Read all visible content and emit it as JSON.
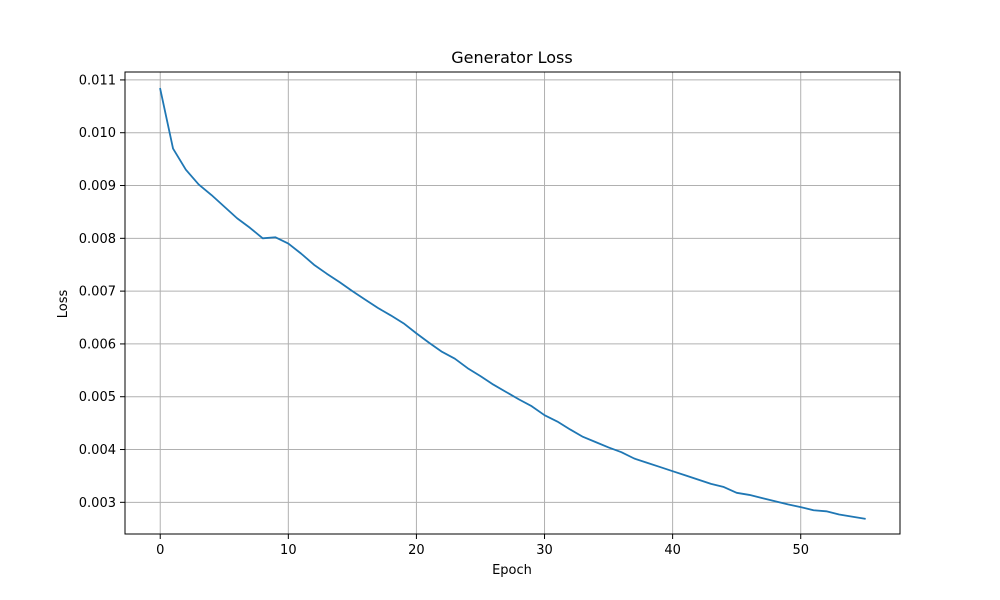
{
  "chart_data": {
    "type": "line",
    "title": "Generator Loss",
    "xlabel": "Epoch",
    "ylabel": "Loss",
    "xlim": [
      -2.75,
      57.75
    ],
    "ylim": [
      0.0024,
      0.01115
    ],
    "grid": true,
    "legend": "none",
    "xticks": [
      0,
      10,
      20,
      30,
      40,
      50
    ],
    "xtick_labels": [
      "0",
      "10",
      "20",
      "30",
      "40",
      "50"
    ],
    "yticks": [
      0.003,
      0.004,
      0.005,
      0.006,
      0.007,
      0.008,
      0.009,
      0.01,
      0.011
    ],
    "ytick_labels": [
      "0.003",
      "0.004",
      "0.005",
      "0.006",
      "0.007",
      "0.008",
      "0.009",
      "0.010",
      "0.011"
    ],
    "series": [
      {
        "color": "#1f77b4",
        "x": [
          0,
          1,
          2,
          3,
          4,
          5,
          6,
          7,
          8,
          9,
          10,
          11,
          12,
          13,
          14,
          15,
          16,
          17,
          18,
          19,
          20,
          21,
          22,
          23,
          24,
          25,
          26,
          27,
          28,
          29,
          30,
          31,
          32,
          33,
          34,
          35,
          36,
          37,
          38,
          39,
          40,
          41,
          42,
          43,
          44,
          45,
          46,
          47,
          48,
          49,
          50,
          51,
          52,
          53,
          54,
          55
        ],
        "y": [
          0.01083,
          0.0097,
          0.0093,
          0.00902,
          0.00882,
          0.0086,
          0.00838,
          0.0082,
          0.008,
          0.00802,
          0.0079,
          0.00771,
          0.0075,
          0.00733,
          0.00717,
          0.007,
          0.00684,
          0.00668,
          0.00654,
          0.00639,
          0.0062,
          0.00602,
          0.00585,
          0.00572,
          0.00554,
          0.00539,
          0.00523,
          0.00509,
          0.00495,
          0.00482,
          0.00465,
          0.00453,
          0.00438,
          0.00424,
          0.00414,
          0.00404,
          0.00395,
          0.00383,
          0.00375,
          0.00367,
          0.00359,
          0.00351,
          0.00343,
          0.00335,
          0.00329,
          0.00318,
          0.00314,
          0.00308,
          0.00302,
          0.00296,
          0.00291,
          0.00285,
          0.00283,
          0.00277,
          0.00273,
          0.00269
        ]
      }
    ]
  }
}
